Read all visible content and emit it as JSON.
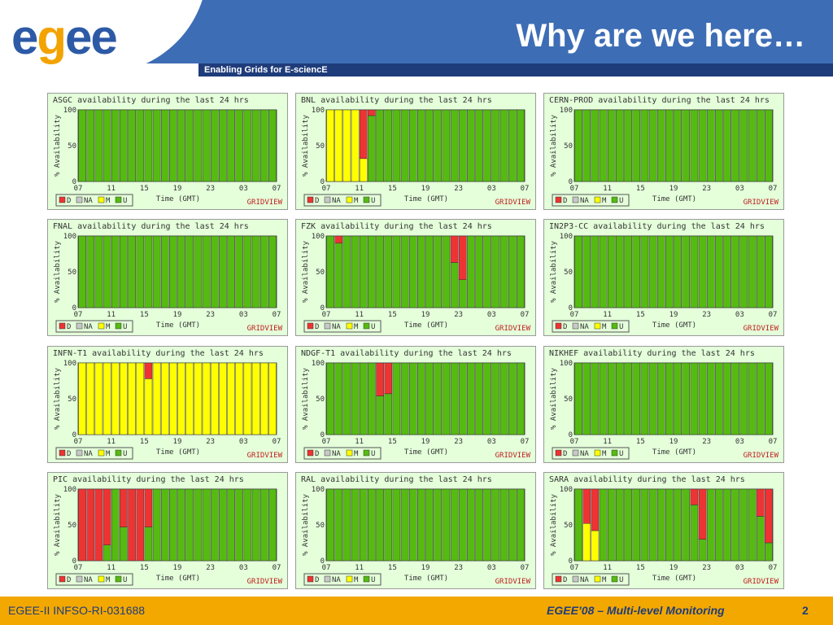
{
  "header": {
    "logo_text": "egee",
    "subtitle": "Enabling Grids for E-sciencE",
    "title": "Why are we here…"
  },
  "footer": {
    "left": "EGEE-II INFSO-RI-031688",
    "right": "EGEE’08 – Multi-level Monitoring",
    "page": "2"
  },
  "colors": {
    "D": "#ee3333",
    "NA": "#c8c8c8",
    "M": "#ffff00",
    "U": "#55bb11"
  },
  "chart_data": [
    {
      "type": "bar",
      "title": "ASGC availability during the last 24 hrs",
      "ylabel": "% Availability",
      "xlabel": "Time (GMT)",
      "ylim": [
        0,
        100
      ],
      "xticks": [
        "07",
        "11",
        "15",
        "19",
        "23",
        "03",
        "07"
      ],
      "yticks": [
        "100",
        "50",
        "0"
      ],
      "legend": [
        "D",
        "NA",
        "M",
        "U"
      ],
      "brand": "GRIDVIEW",
      "hours": []
    },
    {
      "type": "bar",
      "title": "BNL availability during the last 24 hrs",
      "ylabel": "% Availability",
      "xlabel": "Time (GMT)",
      "ylim": [
        0,
        100
      ],
      "xticks": [
        "07",
        "11",
        "15",
        "19",
        "23",
        "03",
        "07"
      ],
      "yticks": [
        "100",
        "50",
        "0"
      ],
      "legend": [
        "D",
        "NA",
        "M",
        "U"
      ],
      "brand": "GRIDVIEW",
      "hours": [
        {
          "h": 0,
          "M": 100
        },
        {
          "h": 1,
          "M": 100
        },
        {
          "h": 2,
          "M": 100
        },
        {
          "h": 3,
          "M": 100
        },
        {
          "h": 4,
          "M": 32,
          "D": 68
        },
        {
          "h": 5,
          "U": 92,
          "D": 8
        }
      ]
    },
    {
      "type": "bar",
      "title": "CERN-PROD availability during the last 24 hrs",
      "ylabel": "% Availability",
      "xlabel": "Time (GMT)",
      "ylim": [
        0,
        100
      ],
      "xticks": [
        "07",
        "11",
        "15",
        "19",
        "23",
        "03",
        "07"
      ],
      "yticks": [
        "100",
        "50",
        "0"
      ],
      "legend": [
        "D",
        "NA",
        "M",
        "U"
      ],
      "brand": "GRIDVIEW",
      "hours": []
    },
    {
      "type": "bar",
      "title": "FNAL availability during the last 24 hrs",
      "ylabel": "% Availability",
      "xlabel": "Time (GMT)",
      "ylim": [
        0,
        100
      ],
      "xticks": [
        "07",
        "11",
        "15",
        "19",
        "23",
        "03",
        "07"
      ],
      "yticks": [
        "100",
        "50",
        "0"
      ],
      "legend": [
        "D",
        "NA",
        "M",
        "U"
      ],
      "brand": "GRIDVIEW",
      "hours": []
    },
    {
      "type": "bar",
      "title": "FZK availability during the last 24 hrs",
      "ylabel": "% Availability",
      "xlabel": "Time (GMT)",
      "ylim": [
        0,
        100
      ],
      "xticks": [
        "07",
        "11",
        "15",
        "19",
        "23",
        "03",
        "07"
      ],
      "yticks": [
        "100",
        "50",
        "0"
      ],
      "legend": [
        "D",
        "NA",
        "M",
        "U"
      ],
      "brand": "GRIDVIEW",
      "hours": [
        {
          "h": 1,
          "U": 90,
          "D": 10
        },
        {
          "h": 15,
          "U": 63,
          "D": 37
        },
        {
          "h": 16,
          "U": 39,
          "D": 61
        }
      ]
    },
    {
      "type": "bar",
      "title": "IN2P3-CC availability during the last 24 hrs",
      "ylabel": "% Availability",
      "xlabel": "Time (GMT)",
      "ylim": [
        0,
        100
      ],
      "xticks": [
        "07",
        "11",
        "15",
        "19",
        "23",
        "03",
        "07"
      ],
      "yticks": [
        "100",
        "50",
        "0"
      ],
      "legend": [
        "D",
        "NA",
        "M",
        "U"
      ],
      "brand": "GRIDVIEW",
      "hours": []
    },
    {
      "type": "bar",
      "title": "INFN-T1 availability during the last 24 hrs",
      "ylabel": "% Availability",
      "xlabel": "Time (GMT)",
      "ylim": [
        0,
        100
      ],
      "xticks": [
        "07",
        "11",
        "15",
        "19",
        "23",
        "03",
        "07"
      ],
      "yticks": [
        "100",
        "50",
        "0"
      ],
      "legend": [
        "D",
        "NA",
        "M",
        "U"
      ],
      "brand": "GRIDVIEW",
      "hours": [
        {
          "h": 0,
          "M": 100
        },
        {
          "h": 1,
          "M": 100
        },
        {
          "h": 2,
          "M": 100
        },
        {
          "h": 3,
          "M": 100
        },
        {
          "h": 4,
          "M": 100
        },
        {
          "h": 5,
          "M": 100
        },
        {
          "h": 6,
          "M": 100
        },
        {
          "h": 7,
          "M": 100
        },
        {
          "h": 8,
          "M": 78,
          "D": 22
        },
        {
          "h": 9,
          "M": 100
        },
        {
          "h": 10,
          "M": 100
        },
        {
          "h": 11,
          "M": 100
        },
        {
          "h": 12,
          "M": 100
        },
        {
          "h": 13,
          "M": 100
        },
        {
          "h": 14,
          "M": 100
        },
        {
          "h": 15,
          "M": 100
        },
        {
          "h": 16,
          "M": 100
        },
        {
          "h": 17,
          "M": 100
        },
        {
          "h": 18,
          "M": 100
        },
        {
          "h": 19,
          "M": 100
        },
        {
          "h": 20,
          "M": 100
        },
        {
          "h": 21,
          "M": 100
        },
        {
          "h": 22,
          "M": 100
        },
        {
          "h": 23,
          "M": 100
        }
      ]
    },
    {
      "type": "bar",
      "title": "NDGF-T1 availability during the last 24 hrs",
      "ylabel": "% Availability",
      "xlabel": "Time (GMT)",
      "ylim": [
        0,
        100
      ],
      "xticks": [
        "07",
        "11",
        "15",
        "19",
        "23",
        "03",
        "07"
      ],
      "yticks": [
        "100",
        "50",
        "0"
      ],
      "legend": [
        "D",
        "NA",
        "M",
        "U"
      ],
      "brand": "GRIDVIEW",
      "hours": [
        {
          "h": 6,
          "U": 54,
          "D": 46
        },
        {
          "h": 7,
          "U": 57,
          "D": 43
        }
      ]
    },
    {
      "type": "bar",
      "title": "NIKHEF availability during the last 24 hrs",
      "ylabel": "% Availability",
      "xlabel": "Time (GMT)",
      "ylim": [
        0,
        100
      ],
      "xticks": [
        "07",
        "11",
        "15",
        "19",
        "23",
        "03",
        "07"
      ],
      "yticks": [
        "100",
        "50",
        "0"
      ],
      "legend": [
        "D",
        "NA",
        "M",
        "U"
      ],
      "brand": "GRIDVIEW",
      "hours": []
    },
    {
      "type": "bar",
      "title": "PIC availability during the last 24 hrs",
      "ylabel": "% Availability",
      "xlabel": "Time (GMT)",
      "ylim": [
        0,
        100
      ],
      "xticks": [
        "07",
        "11",
        "15",
        "19",
        "23",
        "03",
        "07"
      ],
      "yticks": [
        "100",
        "50",
        "0"
      ],
      "legend": [
        "D",
        "NA",
        "M",
        "U"
      ],
      "brand": "GRIDVIEW",
      "hours": [
        {
          "h": 0,
          "D": 100
        },
        {
          "h": 1,
          "D": 100
        },
        {
          "h": 2,
          "D": 100
        },
        {
          "h": 3,
          "U": 22,
          "D": 78
        },
        {
          "h": 5,
          "U": 47,
          "D": 53
        },
        {
          "h": 6,
          "D": 100
        },
        {
          "h": 7,
          "D": 100
        },
        {
          "h": 8,
          "U": 47,
          "D": 53
        }
      ]
    },
    {
      "type": "bar",
      "title": "RAL availability during the last 24 hrs",
      "ylabel": "% Availability",
      "xlabel": "Time (GMT)",
      "ylim": [
        0,
        100
      ],
      "xticks": [
        "07",
        "11",
        "15",
        "19",
        "23",
        "03",
        "07"
      ],
      "yticks": [
        "100",
        "50",
        "0"
      ],
      "legend": [
        "D",
        "NA",
        "M",
        "U"
      ],
      "brand": "GRIDVIEW",
      "hours": []
    },
    {
      "type": "bar",
      "title": "SARA availability during the last 24 hrs",
      "ylabel": "% Availability",
      "xlabel": "Time (GMT)",
      "ylim": [
        0,
        100
      ],
      "xticks": [
        "07",
        "11",
        "15",
        "19",
        "23",
        "03",
        "07"
      ],
      "yticks": [
        "100",
        "50",
        "0"
      ],
      "legend": [
        "D",
        "NA",
        "M",
        "U"
      ],
      "brand": "GRIDVIEW",
      "hours": [
        {
          "h": 1,
          "M": 52,
          "D": 48
        },
        {
          "h": 2,
          "M": 42,
          "D": 58
        },
        {
          "h": 14,
          "U": 78,
          "D": 22
        },
        {
          "h": 15,
          "U": 30,
          "D": 70
        },
        {
          "h": 22,
          "U": 62,
          "D": 38
        },
        {
          "h": 23,
          "U": 25,
          "D": 75
        }
      ]
    }
  ]
}
